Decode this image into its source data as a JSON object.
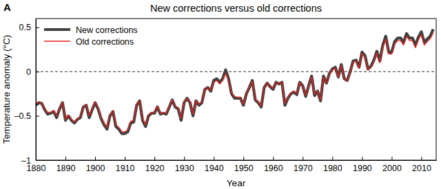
{
  "chart_data": {
    "type": "line",
    "panel_label": "A",
    "title": "New corrections versus old corrections",
    "x_label": "Year",
    "y_label": "Temperature anomaly (°C)",
    "xlim": [
      1880,
      2015
    ],
    "xticks": [
      1880,
      1890,
      1900,
      1910,
      1920,
      1930,
      1940,
      1950,
      1960,
      1970,
      1980,
      1990,
      2000,
      2010
    ],
    "ylim": [
      -1,
      0.6
    ],
    "yticks": [
      {
        "value": -1,
        "label": "–1"
      },
      {
        "value": -0.5,
        "label": "–0.5"
      },
      0,
      0.5
    ],
    "reference_line": 0,
    "grid": false,
    "legend": "upper left",
    "x": [
      1880,
      1881,
      1882,
      1883,
      1884,
      1885,
      1886,
      1887,
      1888,
      1889,
      1890,
      1891,
      1892,
      1893,
      1894,
      1895,
      1896,
      1897,
      1898,
      1899,
      1900,
      1901,
      1902,
      1903,
      1904,
      1905,
      1906,
      1907,
      1908,
      1909,
      1910,
      1911,
      1912,
      1913,
      1914,
      1915,
      1916,
      1917,
      1918,
      1919,
      1920,
      1921,
      1922,
      1923,
      1924,
      1925,
      1926,
      1927,
      1928,
      1929,
      1930,
      1931,
      1932,
      1933,
      1934,
      1935,
      1936,
      1937,
      1938,
      1939,
      1940,
      1941,
      1942,
      1943,
      1944,
      1945,
      1946,
      1947,
      1948,
      1949,
      1950,
      1951,
      1952,
      1953,
      1954,
      1955,
      1956,
      1957,
      1958,
      1959,
      1960,
      1961,
      1962,
      1963,
      1964,
      1965,
      1966,
      1967,
      1968,
      1969,
      1970,
      1971,
      1972,
      1973,
      1974,
      1975,
      1976,
      1977,
      1978,
      1979,
      1980,
      1981,
      1982,
      1983,
      1984,
      1985,
      1986,
      1987,
      1988,
      1989,
      1990,
      1991,
      1992,
      1993,
      1994,
      1995,
      1996,
      1997,
      1998,
      1999,
      2000,
      2001,
      2002,
      2003,
      2004,
      2005,
      2006,
      2007,
      2008,
      2009,
      2010,
      2011,
      2012,
      2013,
      2014
    ],
    "series": [
      {
        "name": "New corrections",
        "color": "#404040",
        "values": [
          -0.38,
          -0.35,
          -0.36,
          -0.43,
          -0.48,
          -0.47,
          -0.45,
          -0.52,
          -0.42,
          -0.35,
          -0.55,
          -0.5,
          -0.55,
          -0.58,
          -0.54,
          -0.52,
          -0.4,
          -0.38,
          -0.52,
          -0.43,
          -0.35,
          -0.42,
          -0.53,
          -0.6,
          -0.65,
          -0.5,
          -0.45,
          -0.62,
          -0.65,
          -0.7,
          -0.7,
          -0.68,
          -0.58,
          -0.57,
          -0.38,
          -0.33,
          -0.55,
          -0.62,
          -0.5,
          -0.47,
          -0.47,
          -0.4,
          -0.48,
          -0.47,
          -0.48,
          -0.4,
          -0.32,
          -0.4,
          -0.42,
          -0.55,
          -0.35,
          -0.3,
          -0.35,
          -0.5,
          -0.33,
          -0.38,
          -0.35,
          -0.2,
          -0.18,
          -0.22,
          -0.1,
          -0.08,
          -0.12,
          -0.08,
          0.02,
          -0.08,
          -0.25,
          -0.3,
          -0.3,
          -0.3,
          -0.38,
          -0.25,
          -0.18,
          -0.1,
          -0.32,
          -0.35,
          -0.4,
          -0.18,
          -0.13,
          -0.17,
          -0.2,
          -0.12,
          -0.14,
          -0.12,
          -0.38,
          -0.3,
          -0.25,
          -0.23,
          -0.26,
          -0.12,
          -0.16,
          -0.28,
          -0.16,
          -0.05,
          -0.27,
          -0.22,
          -0.33,
          -0.05,
          -0.13,
          -0.02,
          0.03,
          0.05,
          -0.06,
          0.08,
          -0.08,
          -0.1,
          0.0,
          0.12,
          0.13,
          0.05,
          0.22,
          0.18,
          0.03,
          0.06,
          0.13,
          0.23,
          0.12,
          0.3,
          0.4,
          0.22,
          0.22,
          0.34,
          0.38,
          0.38,
          0.33,
          0.43,
          0.38,
          0.38,
          0.3,
          0.39,
          0.45,
          0.33,
          0.37,
          0.4,
          0.48
        ]
      },
      {
        "name": "Old corrections",
        "color": "#e8221c",
        "values": [
          -0.37,
          -0.34,
          -0.36,
          -0.42,
          -0.46,
          -0.46,
          -0.44,
          -0.5,
          -0.41,
          -0.35,
          -0.54,
          -0.49,
          -0.54,
          -0.57,
          -0.53,
          -0.51,
          -0.4,
          -0.37,
          -0.5,
          -0.42,
          -0.34,
          -0.41,
          -0.52,
          -0.58,
          -0.63,
          -0.49,
          -0.44,
          -0.6,
          -0.63,
          -0.68,
          -0.68,
          -0.66,
          -0.56,
          -0.55,
          -0.37,
          -0.33,
          -0.53,
          -0.6,
          -0.49,
          -0.46,
          -0.46,
          -0.39,
          -0.47,
          -0.46,
          -0.47,
          -0.39,
          -0.32,
          -0.39,
          -0.41,
          -0.53,
          -0.34,
          -0.3,
          -0.34,
          -0.48,
          -0.33,
          -0.37,
          -0.34,
          -0.2,
          -0.18,
          -0.21,
          -0.12,
          -0.1,
          -0.14,
          -0.1,
          -0.02,
          -0.1,
          -0.24,
          -0.28,
          -0.29,
          -0.29,
          -0.37,
          -0.25,
          -0.18,
          -0.11,
          -0.31,
          -0.34,
          -0.39,
          -0.18,
          -0.13,
          -0.17,
          -0.19,
          -0.12,
          -0.14,
          -0.12,
          -0.36,
          -0.29,
          -0.24,
          -0.22,
          -0.25,
          -0.12,
          -0.16,
          -0.27,
          -0.16,
          -0.06,
          -0.26,
          -0.22,
          -0.32,
          -0.06,
          -0.13,
          -0.03,
          0.02,
          0.04,
          -0.06,
          0.07,
          -0.08,
          -0.1,
          -0.01,
          0.11,
          0.12,
          0.04,
          0.2,
          0.16,
          0.02,
          0.05,
          0.12,
          0.21,
          0.1,
          0.27,
          0.37,
          0.2,
          0.2,
          0.31,
          0.35,
          0.35,
          0.3,
          0.4,
          0.35,
          0.35,
          0.27,
          0.36,
          0.42,
          0.3,
          0.34,
          0.37,
          0.44
        ]
      }
    ]
  }
}
